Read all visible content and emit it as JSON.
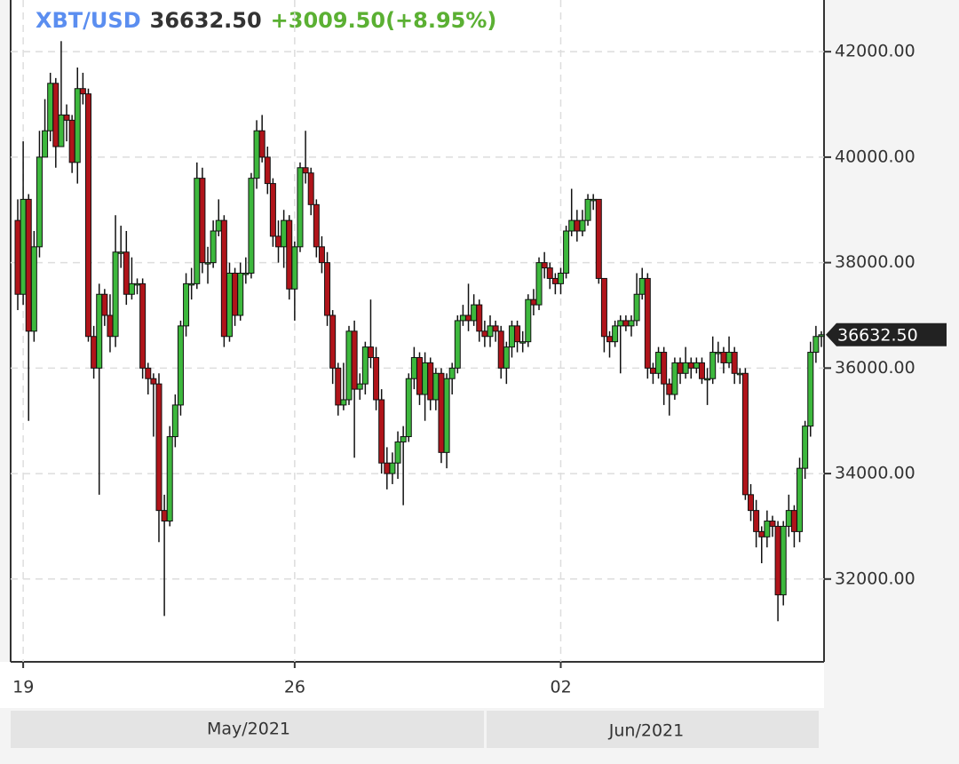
{
  "chart_data": {
    "type": "candlestick",
    "symbol": "XBT/USD",
    "last_price": "36632.50",
    "change": "+3009.50(+8.95%)",
    "months": [
      "May/2021",
      "Jun/2021"
    ],
    "categories": [
      null,
      "19",
      null,
      null,
      null,
      null,
      null,
      null,
      null,
      null,
      null,
      null,
      null,
      null,
      null,
      null,
      null,
      null,
      null,
      null,
      null,
      null,
      null,
      null,
      null,
      null,
      null,
      null,
      null,
      null,
      null,
      null,
      null,
      null,
      null,
      null,
      null,
      null,
      null,
      null,
      null,
      null,
      null,
      null,
      null,
      null,
      null,
      null,
      null,
      null,
      null,
      "26",
      null,
      null,
      null,
      null,
      null,
      null,
      null,
      null,
      null,
      null,
      null,
      null,
      null,
      null,
      null,
      null,
      null,
      null,
      null,
      null,
      null,
      null,
      null,
      null,
      null,
      null,
      null,
      null,
      null,
      null,
      null,
      null,
      null,
      null,
      null,
      null,
      null,
      null,
      null,
      null,
      null,
      null,
      null,
      null,
      null,
      null,
      null,
      null,
      "02",
      null,
      null,
      null,
      null,
      null,
      null,
      null,
      null,
      null,
      null,
      null,
      null,
      null,
      null,
      null,
      null,
      null,
      null,
      null,
      null,
      null,
      null,
      null,
      null,
      null,
      null,
      null,
      null,
      null,
      null,
      null,
      null,
      null,
      null,
      null,
      null,
      null,
      null,
      null,
      null,
      null,
      null,
      null,
      null,
      null,
      null,
      null,
      null
    ],
    "open": [
      38800,
      37400,
      39200,
      36700,
      38300,
      40000,
      40500,
      41400,
      40200,
      40800,
      40700,
      39900,
      41300,
      41200,
      36600,
      36000,
      37400,
      37000,
      36600,
      38200,
      38200,
      37400,
      37600,
      37600,
      36000,
      35800,
      35700,
      33300,
      33100,
      34700,
      35300,
      36800,
      37600,
      37600,
      39600,
      38000,
      38000,
      38600,
      38800,
      36600,
      37800,
      37000,
      37800,
      37800,
      39600,
      40500,
      40000,
      39500,
      38500,
      38300,
      38800,
      37500,
      38300,
      39800,
      39700,
      39100,
      38300,
      38000,
      37000,
      36000,
      35300,
      35400,
      36700,
      35600,
      35700,
      36400,
      36200,
      35400,
      34200,
      34000,
      34200,
      34600,
      34700,
      35800,
      36200,
      35500,
      36100,
      35400,
      35900,
      34400,
      35800,
      36000,
      36900,
      37000,
      36900,
      37200,
      36700,
      36600,
      36800,
      36700,
      36000,
      36400,
      36800,
      36500,
      36500,
      37300,
      37200,
      38000,
      37900,
      37700,
      37600,
      37800,
      38600,
      38800,
      38600,
      38800,
      39200,
      39200,
      37700,
      36600,
      36500,
      36800,
      36900,
      36800,
      36900,
      37400,
      37700,
      36000,
      35900,
      36300,
      35700,
      35500,
      36100,
      35900,
      36100,
      36000,
      36100,
      35800,
      35800,
      36300,
      36300,
      36100,
      36300,
      35900,
      35900,
      33600,
      33300,
      32900,
      32800,
      33100,
      33000,
      31700,
      33000,
      33300,
      32900,
      34100,
      34900,
      36300,
      36600
    ],
    "high": [
      39200,
      40300,
      39300,
      38600,
      40500,
      41100,
      41600,
      41500,
      42200,
      41000,
      40800,
      41700,
      41600,
      41300,
      36800,
      37600,
      37500,
      37400,
      38900,
      38700,
      38600,
      38100,
      37700,
      37700,
      36100,
      35900,
      35900,
      33600,
      34900,
      35500,
      36900,
      37800,
      37900,
      39900,
      39800,
      38300,
      38800,
      39200,
      38900,
      38000,
      37900,
      38000,
      38100,
      39700,
      40700,
      40800,
      40200,
      39600,
      38800,
      39000,
      38900,
      38400,
      39900,
      40500,
      39800,
      39200,
      38500,
      38200,
      37100,
      36100,
      36100,
      36800,
      36900,
      35900,
      36500,
      37300,
      36400,
      35600,
      34500,
      34400,
      34800,
      34900,
      35900,
      36400,
      36300,
      36300,
      36200,
      36000,
      36000,
      35900,
      36100,
      37000,
      37200,
      37600,
      37400,
      37300,
      36900,
      37000,
      36900,
      36800,
      36500,
      36900,
      36900,
      36700,
      37400,
      37500,
      38100,
      38200,
      38000,
      37800,
      37900,
      38700,
      39400,
      39000,
      39000,
      39300,
      39300,
      39200,
      37700,
      36700,
      36900,
      37000,
      37000,
      37000,
      37800,
      37900,
      37800,
      36100,
      36400,
      36400,
      35800,
      36200,
      36200,
      36400,
      36200,
      36200,
      36200,
      36000,
      36600,
      36500,
      36400,
      36600,
      36400,
      36000,
      36000,
      33800,
      33500,
      33000,
      33300,
      33200,
      33100,
      33100,
      33600,
      33400,
      34300,
      35000,
      36500,
      36800,
      36700
    ],
    "low": [
      37100,
      37200,
      35000,
      36500,
      38100,
      40000,
      40300,
      39800,
      40200,
      40300,
      39700,
      39500,
      41000,
      36500,
      35800,
      33600,
      36800,
      36300,
      36400,
      37900,
      37200,
      37300,
      37400,
      35800,
      35500,
      34700,
      32700,
      31300,
      33000,
      34500,
      35100,
      36600,
      37300,
      37500,
      37800,
      37600,
      37900,
      38500,
      36400,
      36500,
      36800,
      36900,
      37600,
      37700,
      39400,
      39900,
      39300,
      38300,
      38000,
      37900,
      37300,
      36900,
      38200,
      39500,
      38900,
      38100,
      37800,
      36800,
      35700,
      35100,
      35200,
      35300,
      34300,
      35400,
      35500,
      36000,
      35200,
      34000,
      33700,
      33800,
      33900,
      33400,
      34600,
      35600,
      35300,
      35000,
      35200,
      35200,
      34200,
      34100,
      35500,
      35900,
      36800,
      36700,
      36800,
      36500,
      36400,
      36400,
      36500,
      35800,
      35700,
      36200,
      36300,
      36300,
      36400,
      37000,
      37100,
      37700,
      37500,
      37400,
      37400,
      37700,
      38500,
      38400,
      38500,
      38700,
      39000,
      37600,
      36300,
      36200,
      36400,
      35900,
      36700,
      36600,
      36800,
      37300,
      35800,
      35700,
      35800,
      35300,
      35100,
      35400,
      35700,
      35800,
      35800,
      35900,
      35700,
      35300,
      35700,
      36100,
      35900,
      36000,
      35700,
      35700,
      33500,
      33100,
      32600,
      32300,
      32600,
      32800,
      31200,
      31500,
      32800,
      32600,
      32700,
      33900,
      34700,
      36100,
      36400
    ],
    "close": [
      37400,
      39200,
      36700,
      38300,
      40000,
      40500,
      41400,
      40200,
      40800,
      40700,
      39900,
      41300,
      41200,
      36600,
      36000,
      37400,
      37000,
      36600,
      38200,
      38200,
      37400,
      37600,
      37600,
      36000,
      35800,
      35700,
      33300,
      33100,
      34700,
      35300,
      36800,
      37600,
      37600,
      39600,
      38000,
      38000,
      38600,
      38800,
      36600,
      37800,
      37000,
      37800,
      37800,
      39600,
      40500,
      40000,
      39500,
      38500,
      38300,
      38800,
      37500,
      38300,
      39800,
      39700,
      39100,
      38300,
      38000,
      37000,
      36000,
      35300,
      35400,
      36700,
      35600,
      35700,
      36400,
      36200,
      35400,
      34200,
      34000,
      34200,
      34600,
      34700,
      35800,
      36200,
      35500,
      36100,
      35400,
      35900,
      34400,
      35800,
      36000,
      36900,
      37000,
      36900,
      37200,
      36700,
      36600,
      36800,
      36700,
      36000,
      36400,
      36800,
      36500,
      36500,
      37300,
      37200,
      38000,
      37900,
      37700,
      37600,
      37800,
      38600,
      38800,
      38600,
      38800,
      39200,
      39200,
      37700,
      36600,
      36500,
      36800,
      36900,
      36800,
      36900,
      37400,
      37700,
      36000,
      35900,
      36300,
      35700,
      35500,
      36100,
      35900,
      36100,
      36000,
      36100,
      35800,
      35800,
      36300,
      36300,
      36100,
      36300,
      35900,
      35900,
      33600,
      33300,
      32900,
      32800,
      33100,
      33000,
      31700,
      33000,
      33300,
      32900,
      34100,
      34900,
      36300,
      36600,
      36632.5
    ],
    "up_color": "#3db83d",
    "down_color": "#b0141a",
    "ylim": [
      30430,
      42980
    ],
    "yticks": [
      {
        "value": 32000,
        "label": "32000.00"
      },
      {
        "value": 34000,
        "label": "34000.00"
      },
      {
        "value": 36000,
        "label": "36000.00"
      },
      {
        "value": 38000,
        "label": "38000.00"
      },
      {
        "value": 40000,
        "label": "40000.00"
      },
      {
        "value": 42000,
        "label": "42000.00"
      }
    ],
    "grid": true
  }
}
